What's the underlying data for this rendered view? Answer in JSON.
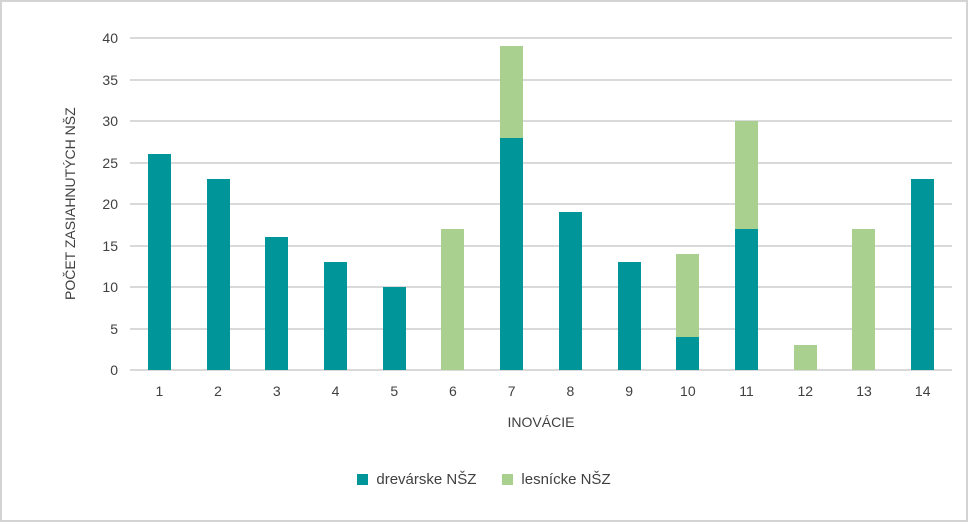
{
  "chart_data": {
    "type": "bar",
    "stacked": true,
    "title": "",
    "xlabel": "INOVÁCIE",
    "ylabel": "POČET ZASIAHNUTÝCH NŠZ",
    "categories": [
      "1",
      "2",
      "3",
      "4",
      "5",
      "6",
      "7",
      "8",
      "9",
      "10",
      "11",
      "12",
      "13",
      "14"
    ],
    "series": [
      {
        "name": "drevárske NŠZ",
        "color": "#009598",
        "values": [
          26,
          23,
          16,
          13,
          10,
          0,
          28,
          19,
          13,
          4,
          17,
          0,
          0,
          23
        ]
      },
      {
        "name": "lesnícke NŠZ",
        "color": "#A9D08E",
        "values": [
          0,
          0,
          0,
          0,
          0,
          17,
          11,
          0,
          0,
          10,
          13,
          3,
          17,
          0
        ]
      }
    ],
    "totals": [
      26,
      23,
      16,
      13,
      10,
      17,
      39,
      19,
      13,
      14,
      30,
      3,
      17,
      23
    ],
    "ylim": [
      0,
      40
    ],
    "yticks": [
      0,
      5,
      10,
      15,
      20,
      25,
      30,
      35,
      40
    ],
    "grid": true,
    "legend_position": "bottom"
  },
  "colors": {
    "gridline": "#d9d9d9",
    "text": "#404040",
    "frame_border": "#d4d4d4",
    "background": "#ffffff"
  }
}
